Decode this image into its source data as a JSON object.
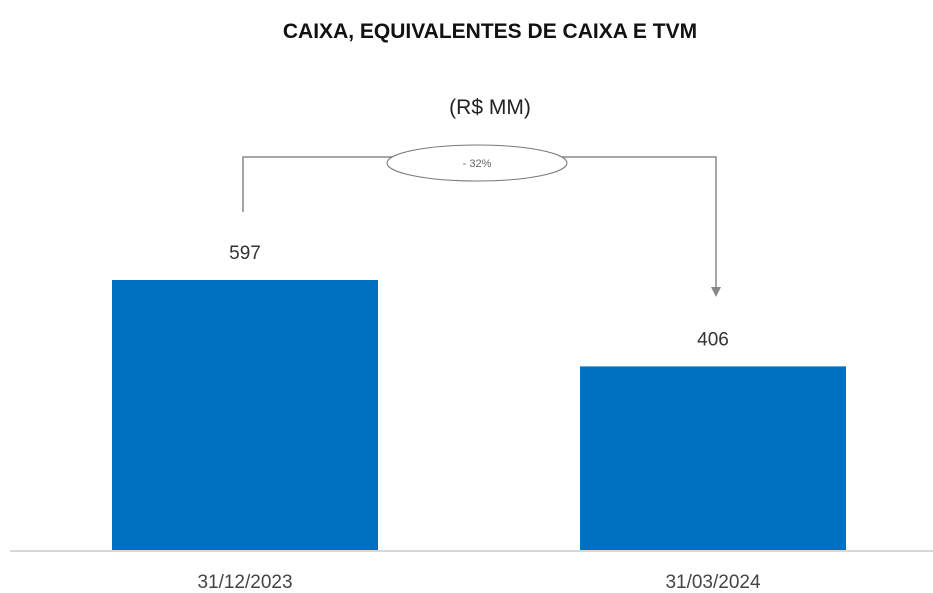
{
  "chart_data": {
    "type": "bar",
    "title": "CAIXA, EQUIVALENTES DE CAIXA E TVM",
    "subtitle": "(R$ MM)",
    "categories": [
      "31/12/2023",
      "31/03/2024"
    ],
    "values": [
      597,
      406
    ],
    "color": "#0070c0",
    "annotation": "- 32%"
  }
}
